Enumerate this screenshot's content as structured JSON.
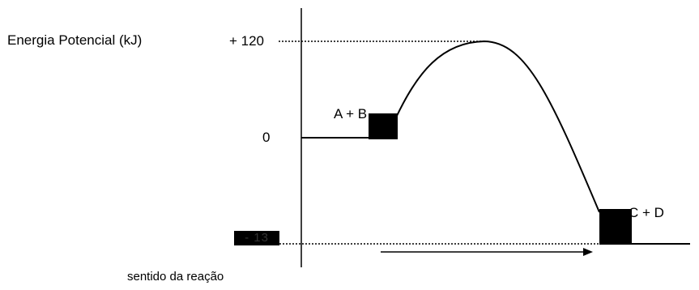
{
  "diagram": {
    "y_axis_label": "Energia  Potencial  (kJ)",
    "x_axis_label": "sentido da reação",
    "ticks": {
      "upper": "+ 120",
      "zero": "0",
      "lower": "- 13"
    },
    "reactants_label": "A + B",
    "products_label": "C + D"
  }
}
